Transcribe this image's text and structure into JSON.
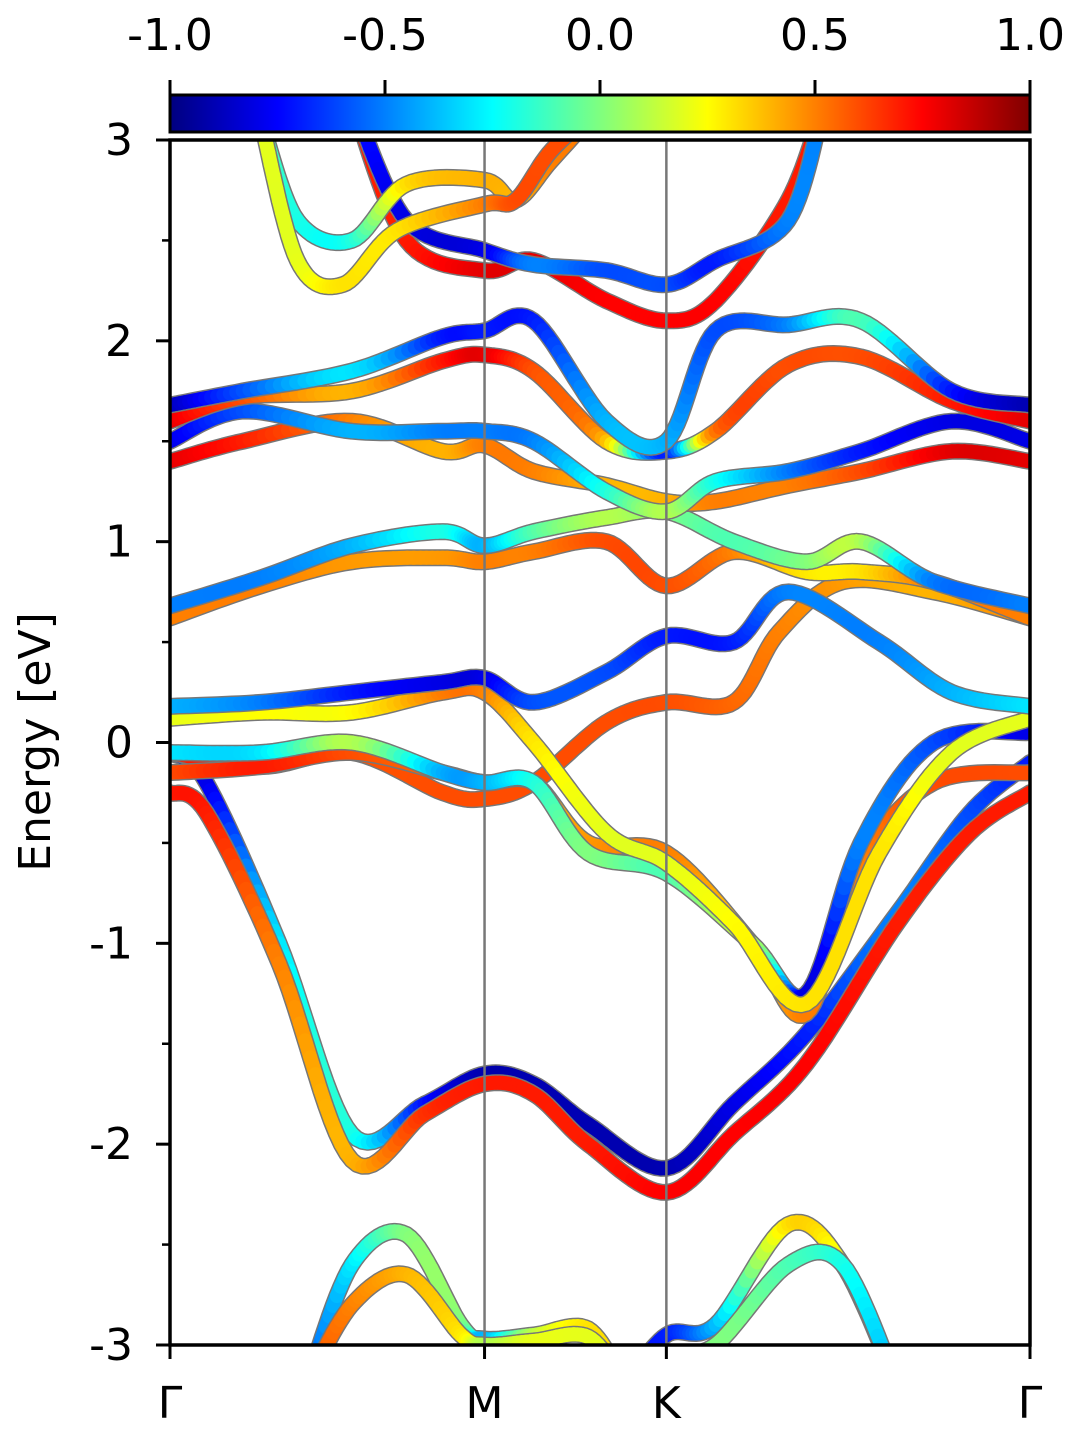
{
  "chart_data": {
    "type": "line",
    "title": "",
    "xlabel": "",
    "ylabel": "Energy [eV]",
    "ylim": [
      -3,
      3
    ],
    "xlim": [
      0,
      4.73
    ],
    "grid": false,
    "legend": "none",
    "colormap": "jet",
    "colorbar": {
      "range": [
        -1.0,
        1.0
      ],
      "ticks": [
        -1.0,
        -0.5,
        0.0,
        0.5,
        1.0
      ],
      "tick_labels": [
        "-1.0",
        "-0.5",
        "0.0",
        "0.5",
        "1.0"
      ],
      "placement": "top"
    },
    "y_ticks": [
      -3,
      -2,
      -1,
      0,
      1,
      2,
      3
    ],
    "y_tick_labels": [
      "-3",
      "-2",
      "-1",
      "0",
      "1",
      "2",
      "3"
    ],
    "y_minor_ticks": [
      -2.5,
      -1.5,
      -0.5,
      0.5,
      1.5,
      2.5
    ],
    "k_points": [
      {
        "label": "Γ",
        "x": 0.0
      },
      {
        "label": "M",
        "x": 1.73
      },
      {
        "label": "K",
        "x": 2.73
      },
      {
        "label": "Γ",
        "x": 4.73
      }
    ],
    "series": [
      {
        "x": [
          0,
          0.2,
          0.6,
          1.0,
          1.4,
          1.73,
          2.0,
          2.3,
          2.73,
          3.1,
          3.5,
          4.0,
          4.4,
          4.73
        ],
        "y": [
          -0.05,
          -0.2,
          -1.0,
          -1.95,
          -1.8,
          -1.65,
          -1.7,
          -1.9,
          -2.12,
          -1.8,
          -1.45,
          -0.85,
          -0.35,
          -0.1
        ],
        "c": [
          -0.8,
          -0.8,
          -0.3,
          -0.2,
          -0.7,
          -0.9,
          -0.9,
          -0.9,
          -0.9,
          -0.8,
          -0.7,
          -0.5,
          -0.6,
          -0.7
        ]
      },
      {
        "x": [
          0,
          0.2,
          0.6,
          1.0,
          1.4,
          1.73,
          2.0,
          2.3,
          2.73,
          3.1,
          3.5,
          4.0,
          4.4,
          4.73
        ],
        "y": [
          -0.25,
          -0.35,
          -1.1,
          -2.08,
          -1.85,
          -1.7,
          -1.75,
          -2.0,
          -2.24,
          -1.95,
          -1.6,
          -0.9,
          -0.45,
          -0.25
        ],
        "c": [
          0.7,
          0.7,
          0.5,
          0.4,
          0.65,
          0.7,
          0.7,
          0.7,
          0.75,
          0.75,
          0.75,
          0.7,
          0.7,
          0.7
        ]
      },
      {
        "x": [
          0,
          0.5,
          1.0,
          1.5,
          1.73,
          2.0,
          2.4,
          2.73,
          3.1,
          3.35,
          3.7,
          4.2,
          4.73
        ],
        "y": [
          -0.05,
          -0.12,
          -0.05,
          -0.25,
          -0.28,
          -0.2,
          0.1,
          0.2,
          0.2,
          0.55,
          0.8,
          0.75,
          0.62
        ],
        "c": [
          0.7,
          0.7,
          0.6,
          0.6,
          0.6,
          0.6,
          0.6,
          0.6,
          0.55,
          0.5,
          0.45,
          0.4,
          0.5
        ]
      },
      {
        "x": [
          0,
          0.5,
          1.0,
          1.5,
          1.73,
          2.0,
          2.3,
          2.73,
          3.2,
          3.5,
          3.8,
          4.2,
          4.73
        ],
        "y": [
          -0.15,
          -0.12,
          -0.05,
          -0.15,
          -0.2,
          -0.2,
          -0.5,
          -0.55,
          -1.0,
          -1.35,
          -0.6,
          -0.2,
          -0.15
        ],
        "c": [
          0.6,
          0.7,
          0.6,
          0.55,
          0.55,
          0.4,
          0.45,
          0.5,
          0.35,
          0.5,
          0.5,
          0.6,
          0.6
        ]
      },
      {
        "x": [
          0,
          0.5,
          1.0,
          1.5,
          1.73,
          2.0,
          2.3,
          2.73,
          3.2,
          3.5,
          3.8,
          4.2,
          4.73
        ],
        "y": [
          -0.05,
          -0.05,
          0.0,
          -0.15,
          -0.2,
          -0.2,
          -0.55,
          -0.65,
          -1.0,
          -1.25,
          -0.5,
          0.0,
          0.05
        ],
        "c": [
          -0.3,
          -0.3,
          0.1,
          -0.4,
          -0.4,
          -0.2,
          0.0,
          -0.1,
          0.1,
          -0.8,
          -0.5,
          -0.6,
          -0.8
        ]
      },
      {
        "x": [
          0,
          0.5,
          1.0,
          1.5,
          1.73,
          2.0,
          2.4,
          2.73,
          3.1,
          3.5,
          3.9,
          4.3,
          4.73
        ],
        "y": [
          0.12,
          0.15,
          0.15,
          0.25,
          0.25,
          0.0,
          -0.45,
          -0.6,
          -0.9,
          -1.3,
          -0.55,
          -0.05,
          0.12
        ],
        "c": [
          0.2,
          0.25,
          0.25,
          0.5,
          0.5,
          0.3,
          0.2,
          0.2,
          0.25,
          0.3,
          0.3,
          0.2,
          0.2
        ]
      },
      {
        "x": [
          0,
          0.5,
          1.0,
          1.5,
          1.73,
          2.0,
          2.4,
          2.73,
          3.1,
          3.4,
          3.9,
          4.3,
          4.73
        ],
        "y": [
          0.18,
          0.2,
          0.25,
          0.3,
          0.32,
          0.2,
          0.35,
          0.53,
          0.5,
          0.75,
          0.5,
          0.25,
          0.18
        ],
        "c": [
          -0.4,
          -0.5,
          -0.7,
          -0.8,
          -0.8,
          -0.6,
          -0.6,
          -0.7,
          -0.7,
          -0.5,
          -0.5,
          -0.4,
          -0.3
        ]
      },
      {
        "x": [
          0,
          0.5,
          1.0,
          1.5,
          1.73,
          2.0,
          2.4,
          2.73,
          3.1,
          3.5,
          3.8,
          4.2,
          4.73
        ],
        "y": [
          0.62,
          0.78,
          0.9,
          0.92,
          0.9,
          0.95,
          1.0,
          0.78,
          0.95,
          0.85,
          0.85,
          0.8,
          0.62
        ],
        "c": [
          0.5,
          0.5,
          0.45,
          0.45,
          0.5,
          0.5,
          0.6,
          0.6,
          0.5,
          0.3,
          0.3,
          0.5,
          0.5
        ]
      },
      {
        "x": [
          0,
          0.5,
          1.0,
          1.5,
          1.73,
          2.0,
          2.4,
          2.73,
          3.1,
          3.5,
          3.8,
          4.2,
          4.73
        ],
        "y": [
          0.68,
          0.82,
          0.98,
          1.05,
          0.98,
          1.05,
          1.12,
          1.15,
          1.0,
          0.9,
          1.0,
          0.8,
          0.68
        ],
        "c": [
          -0.5,
          -0.5,
          -0.4,
          -0.2,
          -0.4,
          -0.1,
          0.1,
          0.0,
          -0.1,
          0.0,
          0.1,
          -0.5,
          -0.5
        ]
      },
      {
        "x": [
          0,
          0.4,
          1.0,
          1.5,
          1.73,
          2.0,
          2.4,
          2.73,
          3.0,
          3.4,
          3.8,
          4.3,
          4.73
        ],
        "y": [
          1.4,
          1.5,
          1.6,
          1.45,
          1.48,
          1.35,
          1.28,
          1.2,
          1.2,
          1.28,
          1.35,
          1.45,
          1.4
        ],
        "c": [
          0.8,
          0.7,
          0.5,
          0.4,
          0.5,
          0.5,
          0.4,
          0.4,
          0.5,
          0.5,
          0.6,
          0.8,
          0.8
        ]
      },
      {
        "x": [
          0,
          0.4,
          1.0,
          1.5,
          1.73,
          2.0,
          2.4,
          2.73,
          3.0,
          3.4,
          3.8,
          4.3,
          4.73
        ],
        "y": [
          1.5,
          1.65,
          1.55,
          1.55,
          1.55,
          1.5,
          1.25,
          1.15,
          1.3,
          1.35,
          1.45,
          1.6,
          1.5
        ],
        "c": [
          -0.8,
          -0.6,
          -0.4,
          -0.5,
          -0.5,
          -0.5,
          -0.2,
          0.1,
          -0.2,
          -0.5,
          -0.7,
          -0.8,
          -0.8
        ]
      },
      {
        "x": [
          0,
          0.4,
          1.0,
          1.5,
          1.73,
          2.0,
          2.4,
          2.73,
          3.0,
          3.4,
          3.8,
          4.3,
          4.73
        ],
        "y": [
          1.6,
          1.72,
          1.75,
          1.9,
          1.93,
          1.85,
          1.5,
          1.45,
          1.55,
          1.88,
          1.92,
          1.7,
          1.6
        ],
        "c": [
          0.8,
          0.6,
          0.4,
          0.7,
          0.8,
          0.6,
          0.4,
          -0.7,
          0.5,
          0.6,
          0.6,
          0.7,
          0.8
        ]
      },
      {
        "x": [
          0,
          0.4,
          1.0,
          1.5,
          1.73,
          2.0,
          2.4,
          2.73,
          3.0,
          3.4,
          3.8,
          4.3,
          4.73
        ],
        "y": [
          1.68,
          1.75,
          1.85,
          2.02,
          2.05,
          2.1,
          1.6,
          1.5,
          2.05,
          2.08,
          2.1,
          1.75,
          1.68
        ],
        "c": [
          -0.9,
          -0.6,
          -0.3,
          -0.7,
          -0.7,
          -0.7,
          -0.4,
          -0.4,
          -0.6,
          -0.5,
          -0.1,
          -0.7,
          -0.9
        ]
      },
      {
        "x": [
          1.0,
          1.3,
          1.73,
          2.0,
          2.4,
          2.73,
          3.0,
          3.4,
          3.6
        ],
        "y": [
          3.2,
          2.5,
          2.35,
          2.4,
          2.2,
          2.1,
          2.2,
          2.7,
          3.2
        ],
        "c": [
          0.7,
          0.7,
          0.8,
          0.8,
          0.75,
          0.75,
          0.75,
          0.7,
          0.7
        ]
      },
      {
        "x": [
          1.0,
          1.3,
          1.73,
          2.0,
          2.4,
          2.73,
          3.0,
          3.4,
          3.6
        ],
        "y": [
          3.2,
          2.6,
          2.45,
          2.38,
          2.35,
          2.28,
          2.4,
          2.6,
          3.2
        ],
        "c": [
          -0.7,
          -0.8,
          -0.8,
          -0.5,
          -0.6,
          -0.6,
          -0.7,
          -0.5,
          -0.5
        ]
      },
      {
        "x": [
          0.5,
          0.7,
          1.0,
          1.3,
          1.73,
          1.9,
          2.1,
          2.4
        ],
        "y": [
          3.1,
          2.6,
          2.5,
          2.78,
          2.8,
          2.7,
          2.9,
          3.2
        ],
        "c": [
          -0.1,
          -0.2,
          -0.2,
          0.3,
          0.4,
          0.4,
          0.5,
          0.5
        ]
      },
      {
        "x": [
          0.5,
          0.7,
          0.95,
          1.25,
          1.73,
          1.9,
          2.1,
          2.4
        ],
        "y": [
          3.1,
          2.4,
          2.28,
          2.55,
          2.68,
          2.7,
          2.95,
          3.2
        ],
        "c": [
          0.2,
          0.2,
          0.3,
          0.3,
          0.5,
          0.6,
          0.6,
          0.6
        ]
      },
      {
        "x": [
          0.75,
          1.0,
          1.3,
          1.6,
          1.73,
          2.0,
          2.3,
          2.5
        ],
        "y": [
          -3.2,
          -2.6,
          -2.45,
          -2.9,
          -2.97,
          -2.95,
          -2.92,
          -3.2
        ],
        "c": [
          -0.6,
          -0.3,
          0.0,
          0.0,
          -0.4,
          0.1,
          0.3,
          0.3
        ]
      },
      {
        "x": [
          0.75,
          1.0,
          1.3,
          1.6,
          1.73,
          2.0,
          2.3,
          2.5
        ],
        "y": [
          -3.2,
          -2.8,
          -2.65,
          -2.95,
          -3.0,
          -2.98,
          -2.96,
          -3.2
        ],
        "c": [
          0.6,
          0.5,
          0.4,
          0.3,
          0.1,
          0.2,
          0.2,
          0.2
        ]
      },
      {
        "x": [
          2.5,
          2.73,
          3.0,
          3.4,
          3.7,
          4.0
        ],
        "y": [
          -3.2,
          -2.95,
          -2.9,
          -2.4,
          -2.6,
          -3.2
        ],
        "c": [
          -0.6,
          -0.7,
          -0.4,
          0.3,
          0.2,
          -0.2
        ]
      },
      {
        "x": [
          2.5,
          2.73,
          3.0,
          3.4,
          3.7,
          4.0
        ],
        "y": [
          -3.2,
          -3.05,
          -3.0,
          -2.6,
          -2.6,
          -3.2
        ],
        "c": [
          -0.2,
          -0.2,
          0.0,
          -0.1,
          -0.2,
          -0.4
        ]
      }
    ]
  }
}
